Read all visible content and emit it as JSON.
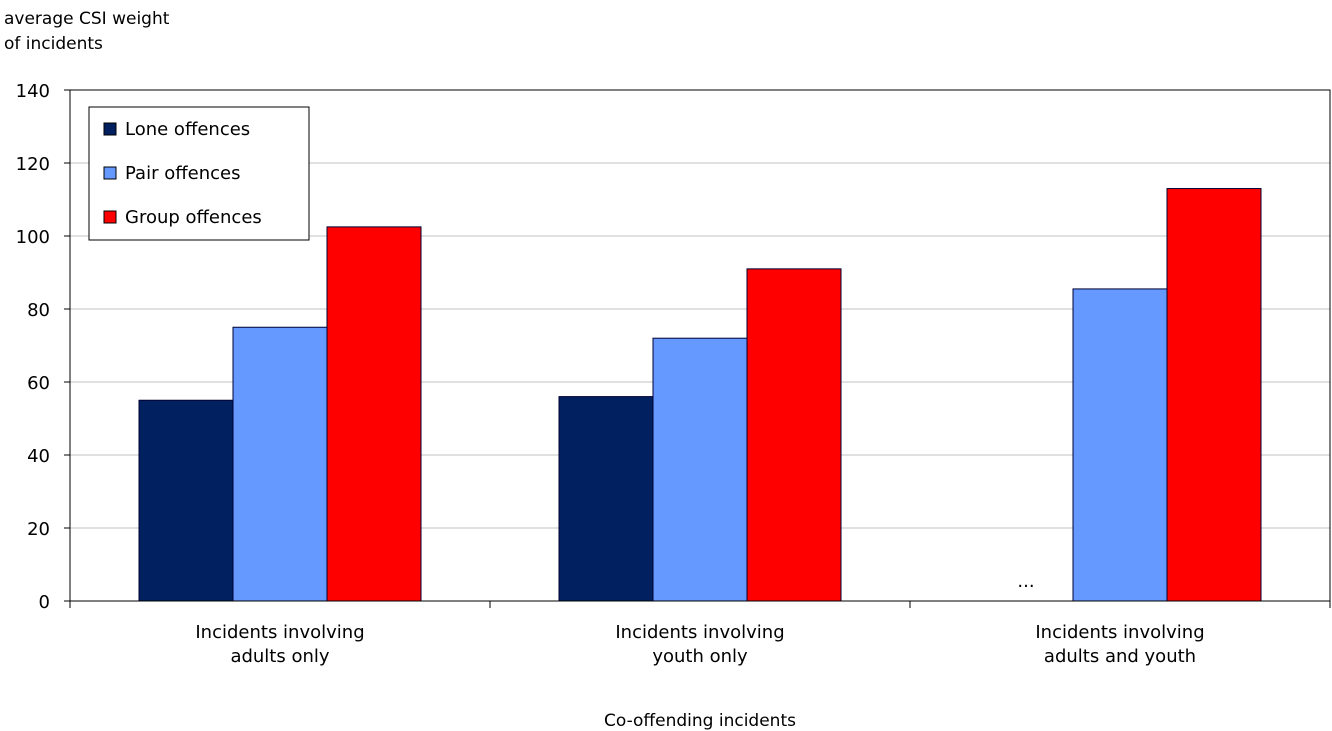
{
  "chart_data": {
    "type": "bar",
    "ylabel_line1": "average CSI weight",
    "ylabel_line2": "of incidents",
    "xlabel": "Co-offending incidents",
    "ylim": [
      0,
      140
    ],
    "yticks": [
      0,
      20,
      40,
      60,
      80,
      100,
      120,
      140
    ],
    "grid": true,
    "legend_position": "top-left",
    "categories": [
      [
        "Incidents involving",
        "adults only"
      ],
      [
        "Incidents involving",
        "youth only"
      ],
      [
        "Incidents involving",
        "adults and youth"
      ]
    ],
    "series": [
      {
        "name": "Lone offences",
        "color": "#002060",
        "values": [
          55,
          56,
          null
        ],
        "missing_label": "..."
      },
      {
        "name": "Pair offences",
        "color": "#6699FF",
        "values": [
          75,
          72,
          85.5
        ]
      },
      {
        "name": "Group offences",
        "color": "#FF0000",
        "values": [
          102.5,
          91,
          113
        ]
      }
    ]
  }
}
